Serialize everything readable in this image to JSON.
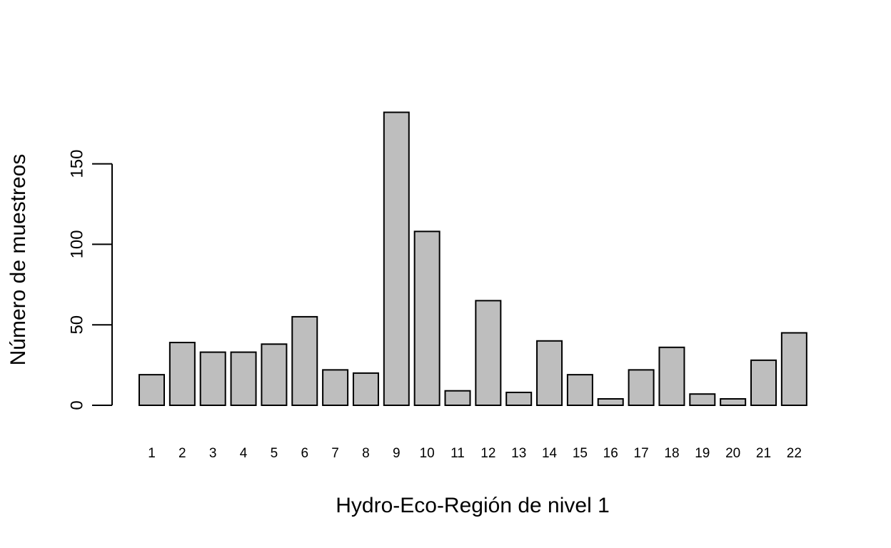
{
  "chart_data": {
    "type": "bar",
    "title": "",
    "xlabel": "Hydro-Eco-Región de nivel 1",
    "ylabel": "Número de muestreos",
    "categories": [
      "1",
      "2",
      "3",
      "4",
      "5",
      "6",
      "7",
      "8",
      "9",
      "10",
      "11",
      "12",
      "13",
      "14",
      "15",
      "16",
      "17",
      "18",
      "19",
      "20",
      "21",
      "22"
    ],
    "values": [
      19,
      39,
      33,
      33,
      38,
      55,
      22,
      20,
      182,
      108,
      9,
      65,
      8,
      40,
      19,
      4,
      22,
      36,
      7,
      4,
      28,
      45
    ],
    "ylim": [
      0,
      182
    ],
    "yticks": [
      0,
      50,
      100,
      150
    ],
    "grid": false,
    "bar_color": "#bebebe",
    "outline_color": "#000000"
  }
}
